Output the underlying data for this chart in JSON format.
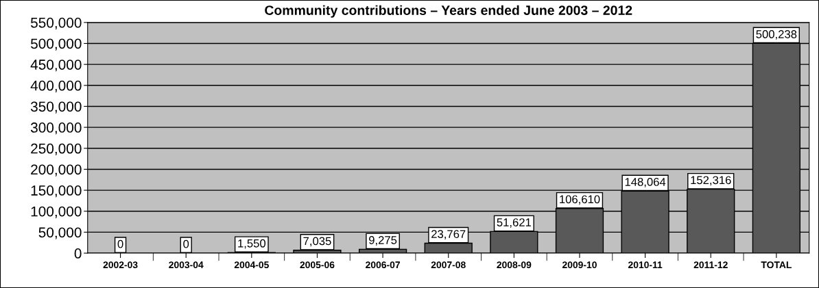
{
  "chart_data": {
    "type": "bar",
    "title": "Community contributions – Years ended June 2003 – 2012",
    "categories": [
      "2002-03",
      "2003-04",
      "2004-05",
      "2005-06",
      "2006-07",
      "2007-08",
      "2008-09",
      "2009-10",
      "2010-11",
      "2011-12",
      "TOTAL"
    ],
    "values": [
      0,
      0,
      1550,
      7035,
      9275,
      23767,
      51621,
      106610,
      148064,
      152316,
      500238
    ],
    "value_labels": [
      "0",
      "0",
      "1,550",
      "7,035",
      "9,275",
      "23,767",
      "51,621",
      "106,610",
      "148,064",
      "152,316",
      "500,238"
    ],
    "color": "#595959",
    "ylim": [
      0,
      550000
    ],
    "yticks": [
      0,
      {
        "value": 50000,
        "label": "50,000"
      },
      {
        "value": 100000,
        "label": "100,000"
      },
      {
        "value": 150000,
        "label": "150,000"
      },
      {
        "value": 200000,
        "label": "200,000"
      },
      {
        "value": 250000,
        "label": "250,000"
      },
      {
        "value": 300000,
        "label": "300,000"
      },
      {
        "value": 350000,
        "label": "350,000"
      },
      {
        "value": 400000,
        "label": "400,000"
      },
      {
        "value": 450000,
        "label": "450,000"
      },
      {
        "value": 500000,
        "label": "500,000"
      },
      {
        "value": 550000,
        "label": "550,000"
      }
    ],
    "grid": "y",
    "legend": false
  }
}
